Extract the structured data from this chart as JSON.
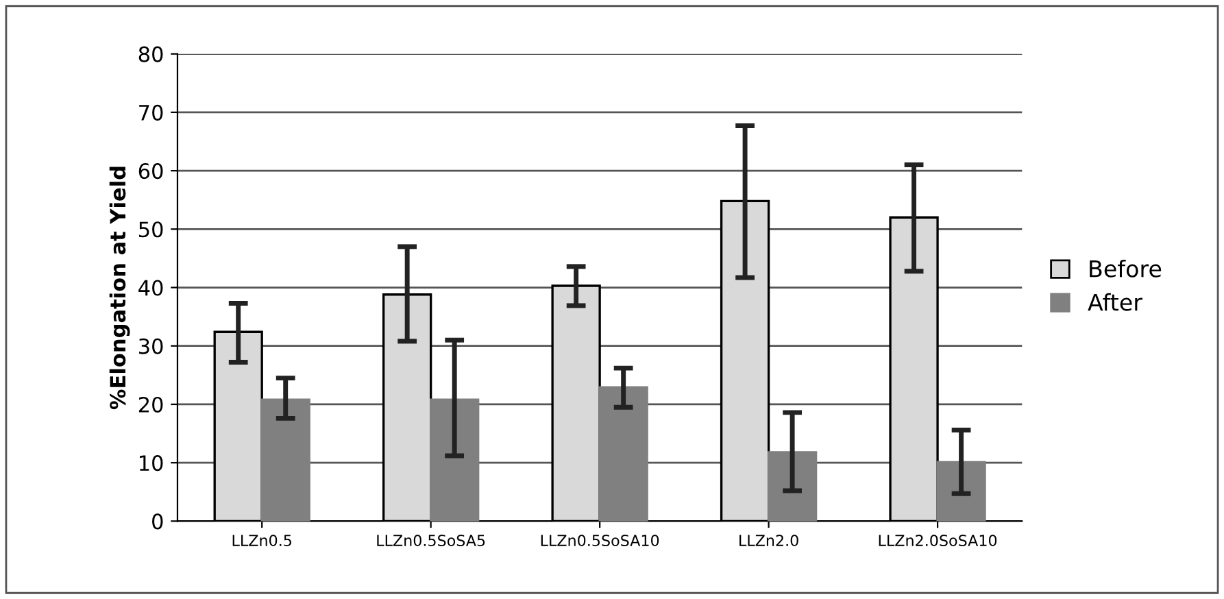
{
  "chart_data": {
    "type": "bar",
    "ylabel": "%Elongation at Yield",
    "categories": [
      "LLZn0.5",
      "LLZn0.5SoSA5",
      "LLZn0.5SoSA10",
      "LLZn2.0",
      "LLZn2.0SoSA10"
    ],
    "series": [
      {
        "name": "Before",
        "color": "#d9d9d9",
        "values": [
          32.4,
          38.8,
          40.3,
          54.8,
          52.0
        ],
        "errors": [
          [
            27.2,
            37.3
          ],
          [
            30.8,
            47.0
          ],
          [
            36.9,
            43.6
          ],
          [
            41.7,
            67.7
          ],
          [
            42.8,
            61.0
          ]
        ]
      },
      {
        "name": "After",
        "color": "#808080",
        "values": [
          20.8,
          20.8,
          22.9,
          11.8,
          10.1
        ],
        "errors": [
          [
            17.6,
            24.5
          ],
          [
            11.2,
            31.0
          ],
          [
            19.5,
            26.2
          ],
          [
            5.2,
            18.6
          ],
          [
            4.7,
            15.6
          ]
        ]
      }
    ],
    "ylim": [
      0,
      80
    ],
    "yticks": [
      0,
      10,
      20,
      30,
      40,
      50,
      60,
      70,
      80
    ],
    "grid": "y",
    "legend": "right"
  }
}
